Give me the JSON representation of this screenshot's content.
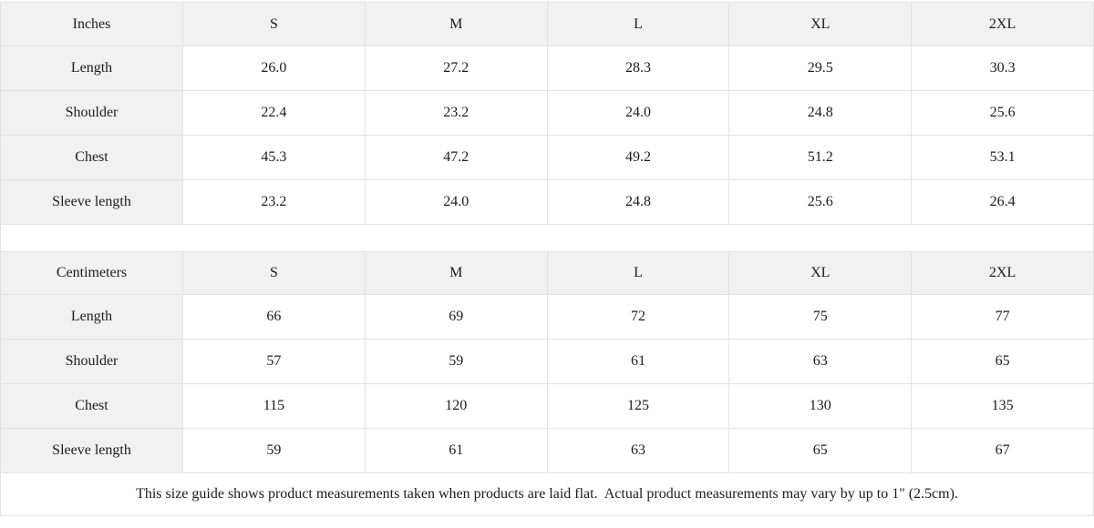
{
  "tables": [
    {
      "unit_label": "Inches",
      "sizes": [
        "S",
        "M",
        "L",
        "XL",
        "2XL"
      ],
      "rows": [
        {
          "label": "Length",
          "values": [
            "26.0",
            "27.2",
            "28.3",
            "29.5",
            "30.3"
          ]
        },
        {
          "label": "Shoulder",
          "values": [
            "22.4",
            "23.2",
            "24.0",
            "24.8",
            "25.6"
          ]
        },
        {
          "label": "Chest",
          "values": [
            "45.3",
            "47.2",
            "49.2",
            "51.2",
            "53.1"
          ]
        },
        {
          "label": "Sleeve length",
          "values": [
            "23.2",
            "24.0",
            "24.8",
            "25.6",
            "26.4"
          ]
        }
      ]
    },
    {
      "unit_label": "Centimeters",
      "sizes": [
        "S",
        "M",
        "L",
        "XL",
        "2XL"
      ],
      "rows": [
        {
          "label": "Length",
          "values": [
            "66",
            "69",
            "72",
            "75",
            "77"
          ]
        },
        {
          "label": "Shoulder",
          "values": [
            "57",
            "59",
            "61",
            "63",
            "65"
          ]
        },
        {
          "label": "Chest",
          "values": [
            "115",
            "120",
            "125",
            "130",
            "135"
          ]
        },
        {
          "label": "Sleeve length",
          "values": [
            "59",
            "61",
            "63",
            "65",
            "67"
          ]
        }
      ]
    }
  ],
  "footer_note": "This size guide shows product measurements taken when products are laid flat.  Actual product measurements may vary by up to 1\" (2.5cm).",
  "colors": {
    "header_bg": "#f1f1f1",
    "border": "#e2e2e2",
    "text": "#1c1c1c"
  }
}
